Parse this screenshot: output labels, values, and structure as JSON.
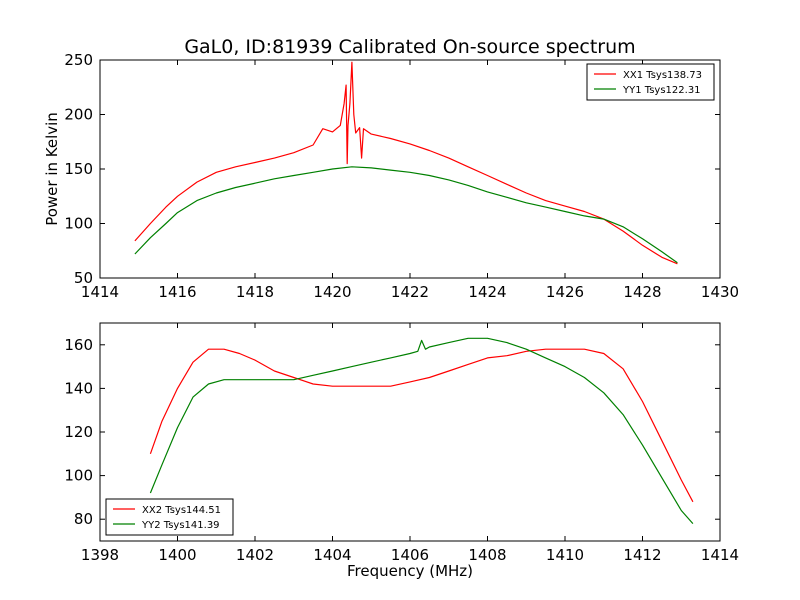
{
  "chart_data": [
    {
      "type": "line",
      "title": "GaL0, ID:81939 Calibrated On-source spectrum",
      "xlabel": "",
      "ylabel": "Power in Kelvin",
      "xlim": [
        1414,
        1430
      ],
      "ylim": [
        50,
        250
      ],
      "xticks": [
        "1414",
        "1416",
        "1418",
        "1420",
        "1422",
        "1424",
        "1426",
        "1428",
        "1430"
      ],
      "yticks": [
        "50",
        "100",
        "150",
        "200",
        "250"
      ],
      "grid": false,
      "legend_position": "top-right",
      "series": [
        {
          "name": "XX1 Tsys138.73",
          "color": "#ff0000",
          "x": [
            1414.9,
            1415.3,
            1415.7,
            1416.0,
            1416.5,
            1417.0,
            1417.5,
            1418.0,
            1418.5,
            1419.0,
            1419.5,
            1419.75,
            1420.0,
            1420.2,
            1420.3,
            1420.35,
            1420.38,
            1420.4,
            1420.45,
            1420.5,
            1420.55,
            1420.6,
            1420.7,
            1420.75,
            1420.8,
            1421.0,
            1421.5,
            1422.0,
            1422.5,
            1423.0,
            1423.5,
            1424.0,
            1424.5,
            1425.0,
            1425.5,
            1426.0,
            1426.5,
            1427.0,
            1427.5,
            1428.0,
            1428.5,
            1428.9
          ],
          "values": [
            84,
            100,
            115,
            125,
            138,
            147,
            152,
            156,
            160,
            165,
            172,
            187,
            184,
            190,
            210,
            227,
            155,
            190,
            210,
            248,
            200,
            183,
            188,
            160,
            187,
            182,
            178,
            173,
            167,
            160,
            152,
            144,
            136,
            128,
            121,
            116,
            111,
            104,
            93,
            80,
            69,
            63
          ]
        },
        {
          "name": "YY1 Tsys122.31",
          "color": "#008000",
          "x": [
            1414.9,
            1415.3,
            1415.7,
            1416.0,
            1416.5,
            1417.0,
            1417.5,
            1418.0,
            1418.5,
            1419.0,
            1419.5,
            1420.0,
            1420.5,
            1421.0,
            1421.5,
            1422.0,
            1422.5,
            1423.0,
            1423.5,
            1424.0,
            1424.5,
            1425.0,
            1425.5,
            1426.0,
            1426.5,
            1427.0,
            1427.5,
            1428.0,
            1428.5,
            1428.9
          ],
          "values": [
            72,
            87,
            100,
            110,
            121,
            128,
            133,
            137,
            141,
            144,
            147,
            150,
            152,
            151,
            149,
            147,
            144,
            140,
            135,
            129,
            124,
            119,
            115,
            111,
            107,
            104,
            97,
            86,
            74,
            64
          ]
        }
      ]
    },
    {
      "type": "line",
      "title": "",
      "xlabel": "Frequency (MHz)",
      "ylabel": "",
      "xlim": [
        1398,
        1414
      ],
      "ylim": [
        70,
        170
      ],
      "xticks": [
        "1398",
        "1400",
        "1402",
        "1404",
        "1406",
        "1408",
        "1410",
        "1412",
        "1414"
      ],
      "yticks": [
        "80",
        "100",
        "120",
        "140",
        "160"
      ],
      "grid": false,
      "legend_position": "bottom-left",
      "series": [
        {
          "name": "XX2 Tsys144.51",
          "color": "#ff0000",
          "x": [
            1399.3,
            1399.6,
            1400.0,
            1400.4,
            1400.8,
            1401.2,
            1401.6,
            1402.0,
            1402.5,
            1403.0,
            1403.5,
            1404.0,
            1404.5,
            1405.0,
            1405.5,
            1406.0,
            1406.5,
            1407.0,
            1407.5,
            1408.0,
            1408.5,
            1409.0,
            1409.5,
            1410.0,
            1410.5,
            1411.0,
            1411.5,
            1412.0,
            1412.5,
            1413.0,
            1413.3
          ],
          "values": [
            110,
            125,
            140,
            152,
            158,
            158,
            156,
            153,
            148,
            145,
            142,
            141,
            141,
            141,
            141,
            143,
            145,
            148,
            151,
            154,
            155,
            157,
            158,
            158,
            158,
            156,
            149,
            134,
            116,
            98,
            88
          ]
        },
        {
          "name": "YY2 Tsys141.39",
          "color": "#008000",
          "x": [
            1399.3,
            1399.6,
            1400.0,
            1400.4,
            1400.8,
            1401.2,
            1401.6,
            1402.0,
            1402.5,
            1403.0,
            1403.5,
            1404.0,
            1404.5,
            1405.0,
            1405.5,
            1406.0,
            1406.2,
            1406.3,
            1406.4,
            1406.5,
            1407.0,
            1407.5,
            1408.0,
            1408.5,
            1409.0,
            1409.5,
            1410.0,
            1410.5,
            1411.0,
            1411.5,
            1412.0,
            1412.5,
            1413.0,
            1413.3
          ],
          "values": [
            92,
            105,
            122,
            136,
            142,
            144,
            144,
            144,
            144,
            144,
            146,
            148,
            150,
            152,
            154,
            156,
            157,
            162,
            158,
            159,
            161,
            163,
            163,
            161,
            158,
            154,
            150,
            145,
            138,
            128,
            114,
            99,
            84,
            78
          ]
        }
      ]
    }
  ]
}
